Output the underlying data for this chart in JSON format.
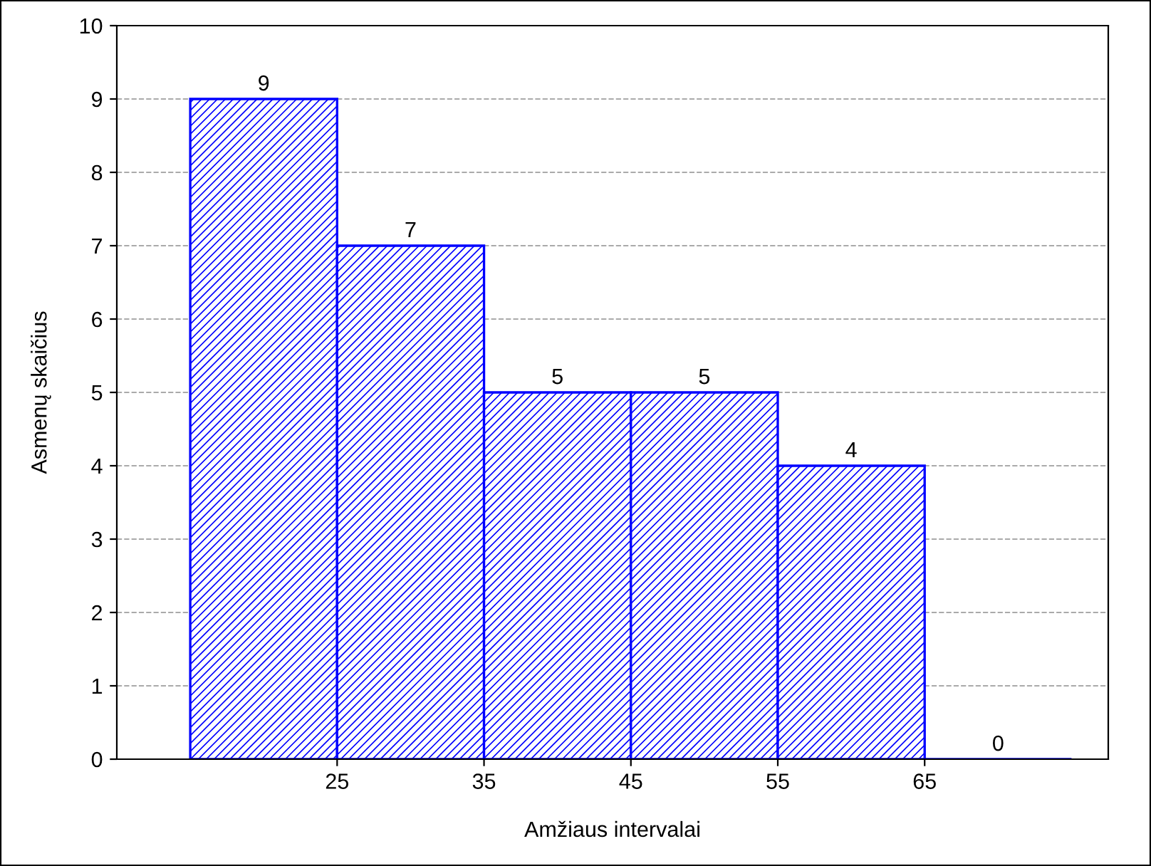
{
  "chart_data": {
    "type": "histogram",
    "xlabel": "Amžiaus intervalai",
    "ylabel": "Asmenų skaičius",
    "bins": [
      15,
      25,
      35,
      45,
      55,
      65,
      75
    ],
    "values": [
      9,
      7,
      5,
      5,
      4,
      0
    ],
    "color": "#0000ff",
    "data_labels": true,
    "grid": "y",
    "xlim": [
      10,
      77.5
    ],
    "xticks": [
      25,
      35,
      45,
      55,
      65
    ],
    "ylim": [
      0,
      10
    ],
    "yticks": [
      0,
      1,
      2,
      3,
      4,
      5,
      6,
      7,
      8,
      9,
      10
    ]
  }
}
